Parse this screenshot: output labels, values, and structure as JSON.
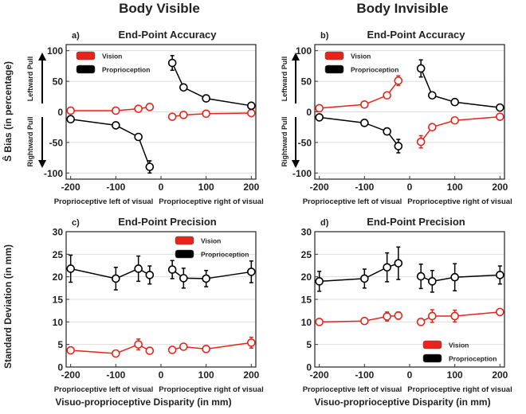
{
  "column_titles": [
    "Body Visible",
    "Body Invisible"
  ],
  "ylabel_top": "Ŝ Bias (in percentage)",
  "ylabel_bottom": "Standard Deviation (in mm)",
  "xlabel_bottom": "Visuo-proprioceptive Disparity (in mm)",
  "pull_labels": {
    "left": "Leftward Pull",
    "right": "Rightward Pull"
  },
  "sub_xlabels": {
    "left": "Proprioceptive left of visual",
    "right": "Proprioceptive right of visual"
  },
  "colors": {
    "vision": "#e8231a",
    "proprioception": "#000000",
    "grid": "#dddddd"
  },
  "chart_data": [
    {
      "type": "line",
      "panel": "a)",
      "title": "End-Point Accuracy",
      "xlim": [
        -210,
        210
      ],
      "ylim": [
        -110,
        110
      ],
      "xticks": [
        -200,
        -100,
        0,
        100,
        200
      ],
      "yticks": [
        -100,
        -50,
        0,
        50,
        100
      ],
      "grid": true,
      "legend": "top-left",
      "x": [
        -200,
        -100,
        -50,
        -25,
        25,
        50,
        100,
        200
      ],
      "series": [
        {
          "name": "Vision",
          "values": [
            2,
            2,
            5,
            8,
            -8,
            -5,
            -3,
            -2
          ],
          "errors": [
            0,
            0,
            0,
            0,
            0,
            0,
            0,
            0
          ]
        },
        {
          "name": "Proprioception",
          "values": [
            -12,
            -22,
            -41,
            -90,
            80,
            40,
            22,
            10
          ],
          "errors": [
            0,
            0,
            5,
            10,
            12,
            4,
            0,
            0
          ]
        }
      ]
    },
    {
      "type": "line",
      "panel": "b)",
      "title": "End-Point Accuracy",
      "xlim": [
        -210,
        210
      ],
      "ylim": [
        -110,
        110
      ],
      "xticks": [
        -200,
        -100,
        0,
        100,
        200
      ],
      "yticks": [
        -100,
        -50,
        0,
        50,
        100
      ],
      "grid": true,
      "legend": "top-left",
      "x": [
        -200,
        -100,
        -50,
        -25,
        25,
        50,
        100,
        200
      ],
      "series": [
        {
          "name": "Vision",
          "values": [
            6,
            12,
            27,
            51,
            -49,
            -25,
            -14,
            -8
          ],
          "errors": [
            0,
            0,
            0,
            8,
            10,
            0,
            0,
            0
          ]
        },
        {
          "name": "Proprioception",
          "values": [
            -9,
            -18,
            -32,
            -56,
            71,
            27,
            16,
            7
          ],
          "errors": [
            0,
            0,
            3,
            11,
            14,
            4,
            0,
            0
          ]
        }
      ]
    },
    {
      "type": "line",
      "panel": "c)",
      "title": "End-Point Precision",
      "xlim": [
        -210,
        210
      ],
      "ylim": [
        0,
        30
      ],
      "xticks": [
        -200,
        -100,
        0,
        100,
        200
      ],
      "yticks": [
        0,
        5,
        10,
        15,
        20,
        25,
        30
      ],
      "grid": true,
      "legend": "top-right",
      "x": [
        -200,
        -100,
        -50,
        -25,
        25,
        50,
        100,
        200
      ],
      "series": [
        {
          "name": "Vision",
          "values": [
            3.7,
            3.0,
            5.0,
            3.6,
            3.8,
            4.5,
            4.0,
            5.4
          ],
          "errors": [
            0,
            0,
            1.2,
            0,
            0,
            0.6,
            0,
            1.2
          ]
        },
        {
          "name": "Proprioception",
          "values": [
            21.8,
            19.6,
            21.8,
            20.4,
            21.6,
            19.7,
            19.6,
            21.1
          ],
          "errors": [
            3,
            2.5,
            2.8,
            2,
            2,
            2.2,
            1.8,
            2.4
          ]
        }
      ]
    },
    {
      "type": "line",
      "panel": "d)",
      "title": "End-Point Precision",
      "xlim": [
        -210,
        210
      ],
      "ylim": [
        0,
        30
      ],
      "xticks": [
        -200,
        -100,
        0,
        100,
        200
      ],
      "yticks": [
        0,
        5,
        10,
        15,
        20,
        25,
        30
      ],
      "grid": true,
      "legend": "bottom-right",
      "x": [
        -200,
        -100,
        -50,
        -25,
        25,
        50,
        100,
        200
      ],
      "series": [
        {
          "name": "Vision",
          "values": [
            10,
            10.2,
            11.2,
            11.4,
            10,
            11.3,
            11.3,
            12.2
          ],
          "errors": [
            0,
            0,
            1,
            0.8,
            0,
            1.4,
            1.3,
            0
          ]
        },
        {
          "name": "Proprioception",
          "values": [
            19,
            19.6,
            22.1,
            23,
            20.1,
            19,
            19.9,
            20.4
          ],
          "errors": [
            2.2,
            2.1,
            3.2,
            3.6,
            2.7,
            2.4,
            3,
            2
          ]
        }
      ]
    }
  ]
}
